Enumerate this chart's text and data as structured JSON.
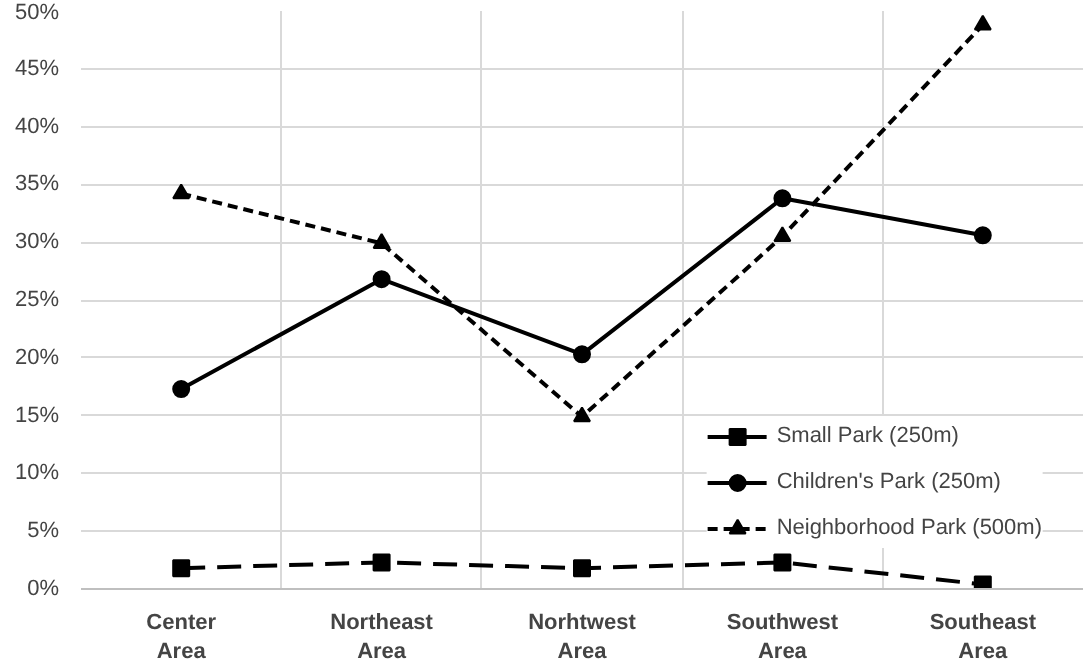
{
  "chart_data": {
    "type": "line",
    "categories": [
      "Center Area",
      "Northeast Area",
      "Norhtwest Area",
      "Southwest Area",
      "Southeast Area"
    ],
    "series": [
      {
        "name": "Small Park (250m)",
        "color": "#000000",
        "marker": "square",
        "line_style": "dashed",
        "values": [
          1.8,
          2.3,
          1.8,
          2.3,
          0.4
        ]
      },
      {
        "name": "Children's Park (250m)",
        "color": "#000000",
        "marker": "circle",
        "line_style": "solid",
        "values": [
          17.3,
          26.8,
          20.3,
          33.8,
          30.6
        ]
      },
      {
        "name": "Neighborhood Park (500m)",
        "color": "#000000",
        "marker": "triangle",
        "line_style": "dotted",
        "values": [
          34.2,
          29.9,
          14.9,
          30.5,
          48.8
        ]
      }
    ],
    "ylim": [
      0,
      50
    ],
    "yticks": [
      {
        "value": 0,
        "label": "0%"
      },
      {
        "value": 5,
        "label": "5%"
      },
      {
        "value": 10,
        "label": "10%"
      },
      {
        "value": 15,
        "label": "15%"
      },
      {
        "value": 20,
        "label": "20%"
      },
      {
        "value": 25,
        "label": "25%"
      },
      {
        "value": 30,
        "label": "30%"
      },
      {
        "value": 35,
        "label": "35%"
      },
      {
        "value": 40,
        "label": "40%"
      },
      {
        "value": 45,
        "label": "45%"
      },
      {
        "value": 50,
        "label": "50%"
      }
    ],
    "grid": true,
    "legend": "bottom right"
  }
}
